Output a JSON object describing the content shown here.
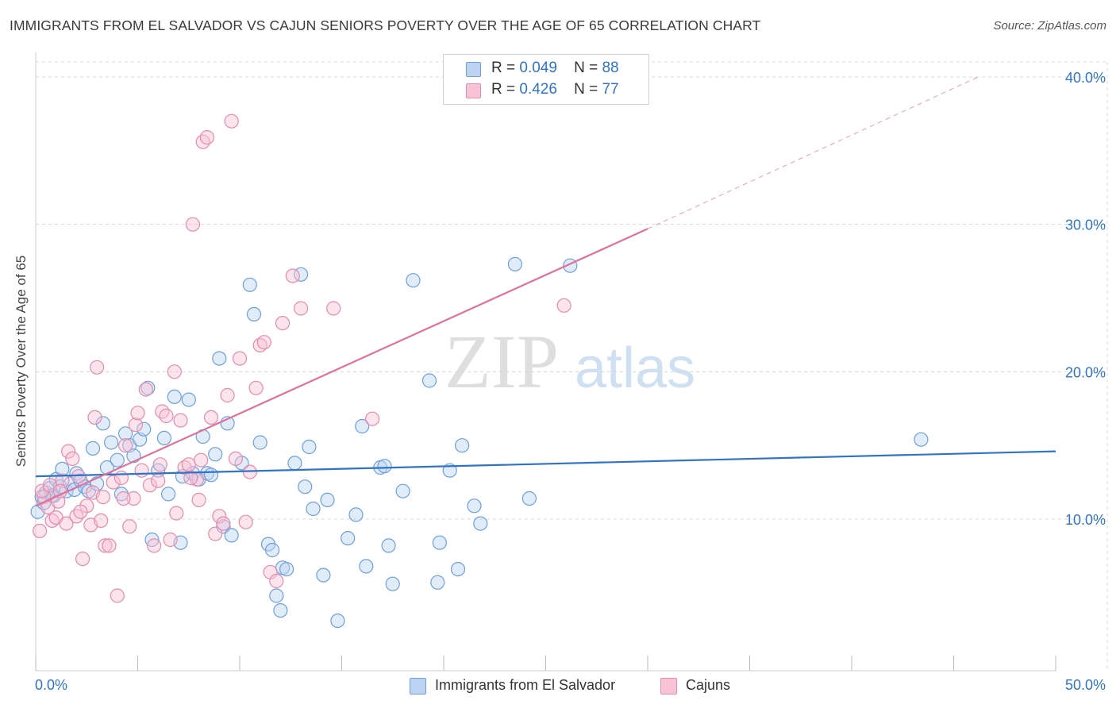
{
  "header": {
    "title": "IMMIGRANTS FROM EL SALVADOR VS CAJUN SENIORS POVERTY OVER THE AGE OF 65 CORRELATION CHART",
    "source": "Source: ZipAtlas.com"
  },
  "watermark": {
    "zip": "ZIP",
    "atlas": "atlas"
  },
  "legend_top": {
    "rows": [
      {
        "r_label": "R =",
        "r_value": "0.049",
        "n_label": "N =",
        "n_value": "88"
      },
      {
        "r_label": "R =",
        "r_value": "0.426",
        "n_label": "N =",
        "n_value": "77"
      }
    ]
  },
  "legend_bottom": {
    "items": [
      {
        "label": "Immigrants from El Salvador"
      },
      {
        "label": "Cajuns"
      }
    ]
  },
  "chart_data": {
    "type": "scatter",
    "title": "IMMIGRANTS FROM EL SALVADOR VS CAJUN SENIORS POVERTY OVER THE AGE OF 65 CORRELATION CHART",
    "xlabel": "",
    "ylabel": "Seniors Poverty Over the Age of 65",
    "xlim": [
      0,
      50
    ],
    "ylim": [
      0,
      40
    ],
    "x_tick_labels": [
      "0.0%",
      "50.0%"
    ],
    "y_ticks": [
      10,
      20,
      30,
      40
    ],
    "y_tick_labels": [
      "10.0%",
      "20.0%",
      "30.0%",
      "40.0%"
    ],
    "grid": true,
    "legend_position": "top-center",
    "colors": {
      "blue_fill": "#bcd4f2",
      "blue_stroke": "#6e9fdc",
      "blue_line": "#2f74c9",
      "pink_fill": "#f8c3d5",
      "pink_stroke": "#e58bad",
      "pink_line": "#e0709a",
      "value_text": "#2f74c9"
    },
    "series": [
      {
        "name": "Immigrants from El Salvador",
        "color": "#6e9fdc",
        "r": 0.049,
        "n": 88,
        "trend": {
          "x": [
            0,
            50
          ],
          "y": [
            12.9,
            14.6
          ]
        },
        "points": [
          [
            0.3,
            11.5
          ],
          [
            0.5,
            11.8
          ],
          [
            0.7,
            12.1
          ],
          [
            0.9,
            11.6
          ],
          [
            1.0,
            12.7
          ],
          [
            1.2,
            12.2
          ],
          [
            1.3,
            13.4
          ],
          [
            1.5,
            11.9
          ],
          [
            1.7,
            12.4
          ],
          [
            1.9,
            12.0
          ],
          [
            2.0,
            13.1
          ],
          [
            2.2,
            12.6
          ],
          [
            2.4,
            12.2
          ],
          [
            2.6,
            11.9
          ],
          [
            2.8,
            14.8
          ],
          [
            3.0,
            12.4
          ],
          [
            3.3,
            16.5
          ],
          [
            3.5,
            13.5
          ],
          [
            3.7,
            15.2
          ],
          [
            4.0,
            14.0
          ],
          [
            4.2,
            11.7
          ],
          [
            4.4,
            15.8
          ],
          [
            4.6,
            15.0
          ],
          [
            4.8,
            14.3
          ],
          [
            5.1,
            15.4
          ],
          [
            5.3,
            16.1
          ],
          [
            5.5,
            18.9
          ],
          [
            5.7,
            8.6
          ],
          [
            6.0,
            13.3
          ],
          [
            6.3,
            15.5
          ],
          [
            6.5,
            11.7
          ],
          [
            6.8,
            18.3
          ],
          [
            7.1,
            8.4
          ],
          [
            7.2,
            12.9
          ],
          [
            7.5,
            18.1
          ],
          [
            7.7,
            13.1
          ],
          [
            8.0,
            12.7
          ],
          [
            8.2,
            15.6
          ],
          [
            8.4,
            13.1
          ],
          [
            8.6,
            13.0
          ],
          [
            8.8,
            14.4
          ],
          [
            9.0,
            20.9
          ],
          [
            9.2,
            9.5
          ],
          [
            9.4,
            16.5
          ],
          [
            9.6,
            8.9
          ],
          [
            10.1,
            13.8
          ],
          [
            10.5,
            25.9
          ],
          [
            10.7,
            23.9
          ],
          [
            11.0,
            15.2
          ],
          [
            11.4,
            8.3
          ],
          [
            11.6,
            7.9
          ],
          [
            11.8,
            4.8
          ],
          [
            12.1,
            6.7
          ],
          [
            12.3,
            6.6
          ],
          [
            12.0,
            3.8
          ],
          [
            12.7,
            13.8
          ],
          [
            13.0,
            26.6
          ],
          [
            13.2,
            12.2
          ],
          [
            13.4,
            14.9
          ],
          [
            13.6,
            10.7
          ],
          [
            14.1,
            6.2
          ],
          [
            14.3,
            11.3
          ],
          [
            14.8,
            3.1
          ],
          [
            15.3,
            8.7
          ],
          [
            15.7,
            10.3
          ],
          [
            16.2,
            6.8
          ],
          [
            16.0,
            16.3
          ],
          [
            16.9,
            13.5
          ],
          [
            17.3,
            8.2
          ],
          [
            17.5,
            5.6
          ],
          [
            17.1,
            13.6
          ],
          [
            18.0,
            11.9
          ],
          [
            18.5,
            26.2
          ],
          [
            19.3,
            19.4
          ],
          [
            19.8,
            8.4
          ],
          [
            19.7,
            5.7
          ],
          [
            20.3,
            13.3
          ],
          [
            20.7,
            6.6
          ],
          [
            20.9,
            15.0
          ],
          [
            21.5,
            10.9
          ],
          [
            21.8,
            9.7
          ],
          [
            23.5,
            27.3
          ],
          [
            24.2,
            11.4
          ],
          [
            26.2,
            27.2
          ],
          [
            0.1,
            10.5
          ],
          [
            0.4,
            11.1
          ],
          [
            0.8,
            11.6
          ],
          [
            43.4,
            15.4
          ]
        ]
      },
      {
        "name": "Cajuns",
        "color": "#e58bad",
        "r": 0.426,
        "n": 77,
        "trend": {
          "x": [
            0,
            30
          ],
          "y": [
            10.9,
            29.7
          ]
        },
        "trend_dashed": {
          "x": [
            30,
            46.2
          ],
          "y": [
            29.7,
            40.0
          ]
        },
        "points": [
          [
            0.2,
            9.2
          ],
          [
            0.4,
            11.5
          ],
          [
            0.6,
            10.8
          ],
          [
            0.8,
            9.9
          ],
          [
            1.0,
            10.1
          ],
          [
            1.1,
            11.2
          ],
          [
            1.3,
            12.6
          ],
          [
            1.5,
            9.7
          ],
          [
            1.6,
            14.6
          ],
          [
            1.8,
            14.1
          ],
          [
            2.0,
            10.2
          ],
          [
            2.1,
            12.9
          ],
          [
            2.3,
            7.3
          ],
          [
            2.5,
            10.9
          ],
          [
            2.7,
            9.6
          ],
          [
            2.8,
            11.8
          ],
          [
            2.9,
            16.9
          ],
          [
            3.0,
            20.3
          ],
          [
            3.2,
            9.9
          ],
          [
            3.3,
            11.5
          ],
          [
            3.4,
            8.2
          ],
          [
            3.6,
            8.2
          ],
          [
            3.8,
            12.5
          ],
          [
            4.0,
            4.8
          ],
          [
            4.2,
            12.8
          ],
          [
            4.4,
            15.0
          ],
          [
            4.6,
            9.5
          ],
          [
            4.8,
            11.4
          ],
          [
            4.9,
            16.4
          ],
          [
            5.0,
            17.2
          ],
          [
            5.2,
            13.3
          ],
          [
            5.4,
            18.8
          ],
          [
            5.6,
            12.3
          ],
          [
            5.8,
            8.2
          ],
          [
            6.0,
            12.6
          ],
          [
            6.2,
            17.3
          ],
          [
            6.4,
            17.0
          ],
          [
            6.6,
            8.6
          ],
          [
            6.8,
            20.0
          ],
          [
            6.9,
            10.4
          ],
          [
            7.1,
            16.7
          ],
          [
            7.3,
            13.5
          ],
          [
            7.5,
            13.7
          ],
          [
            7.7,
            30.0
          ],
          [
            7.9,
            12.7
          ],
          [
            8.0,
            11.3
          ],
          [
            8.2,
            35.6
          ],
          [
            8.4,
            35.9
          ],
          [
            8.6,
            16.9
          ],
          [
            8.8,
            9.0
          ],
          [
            9.0,
            10.2
          ],
          [
            9.2,
            9.7
          ],
          [
            9.4,
            18.4
          ],
          [
            9.6,
            37.0
          ],
          [
            9.8,
            14.1
          ],
          [
            10.0,
            20.9
          ],
          [
            10.3,
            9.8
          ],
          [
            10.5,
            13.2
          ],
          [
            10.8,
            18.9
          ],
          [
            11.0,
            21.8
          ],
          [
            11.2,
            22.0
          ],
          [
            11.5,
            6.4
          ],
          [
            11.8,
            5.8
          ],
          [
            12.1,
            23.3
          ],
          [
            12.6,
            26.5
          ],
          [
            13.0,
            24.3
          ],
          [
            14.6,
            24.3
          ],
          [
            16.5,
            16.8
          ],
          [
            25.9,
            24.5
          ],
          [
            0.3,
            11.9
          ],
          [
            0.7,
            12.3
          ],
          [
            1.2,
            11.9
          ],
          [
            2.2,
            10.5
          ],
          [
            4.3,
            11.4
          ],
          [
            6.1,
            13.7
          ],
          [
            7.6,
            12.8
          ],
          [
            8.1,
            14.0
          ]
        ]
      }
    ]
  }
}
